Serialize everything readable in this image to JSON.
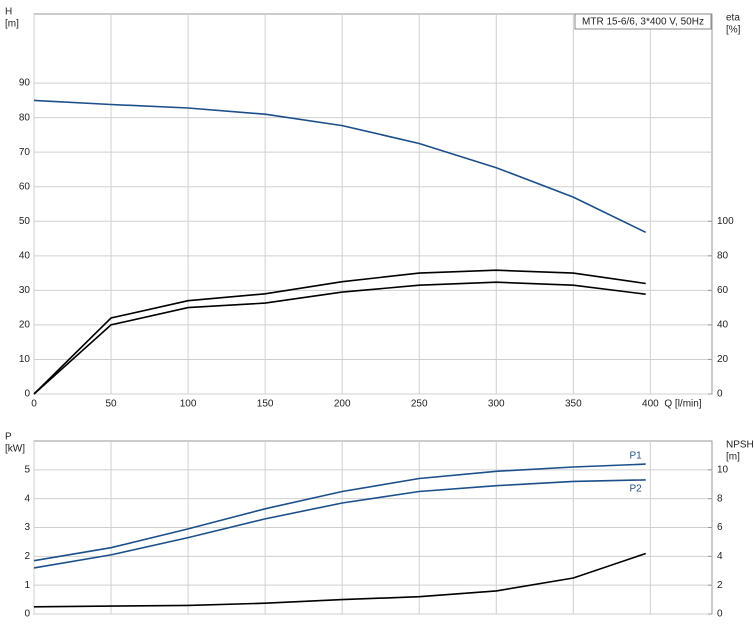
{
  "chart_data": [
    {
      "type": "line",
      "title": "MTR 15-6/6, 3*400 V, 50Hz",
      "ylabel": [
        "H",
        "[m]"
      ],
      "y2label": [
        "eta",
        "[%]"
      ],
      "xlabel": "Q [l/min]",
      "x": [
        0,
        50,
        100,
        150,
        200,
        250,
        300,
        350,
        397
      ],
      "xlim": [
        0,
        440
      ],
      "xticks": [
        0,
        50,
        100,
        150,
        200,
        250,
        300,
        350,
        400
      ],
      "ylim": [
        0,
        110
      ],
      "yticks": [
        0,
        10,
        20,
        30,
        40,
        50,
        60,
        70,
        80,
        90
      ],
      "y2lim": [
        0,
        220
      ],
      "y2ticks": [
        0,
        20,
        40,
        60,
        80,
        100
      ],
      "grid": true,
      "series": [
        {
          "color": "#1b4f8a",
          "values": [
            85,
            83.8,
            82.8,
            81,
            77.7,
            72.5,
            65.5,
            57,
            46.8
          ]
        },
        {
          "color": "#000000",
          "axis": "y2",
          "values": [
            0,
            44,
            54,
            58,
            65,
            70,
            71.7,
            70,
            64
          ]
        },
        {
          "color": "#000000",
          "axis": "y2",
          "values": [
            0,
            40,
            50,
            52.6,
            59,
            63,
            64.7,
            63,
            57.8
          ]
        }
      ]
    },
    {
      "type": "line",
      "ylabel": [
        "P",
        "[kW]"
      ],
      "y2label": [
        "NPSH",
        "[m]"
      ],
      "x": [
        0,
        50,
        100,
        150,
        200,
        250,
        300,
        350,
        397
      ],
      "xlim": [
        0,
        440
      ],
      "xticks": [
        0,
        50,
        100,
        150,
        200,
        250,
        300,
        350,
        400
      ],
      "ylim": [
        0,
        6
      ],
      "yticks": [
        0,
        1,
        2,
        3,
        4,
        5
      ],
      "y2lim": [
        0,
        12
      ],
      "y2ticks": [
        0,
        2,
        4,
        6,
        8,
        10
      ],
      "grid": true,
      "series": [
        {
          "name": "P1",
          "color": "#1b4f8a",
          "values": [
            1.85,
            2.3,
            2.95,
            3.65,
            4.25,
            4.7,
            4.95,
            5.1,
            5.2
          ]
        },
        {
          "name": "P2",
          "color": "#1b4f8a",
          "values": [
            1.6,
            2.05,
            2.65,
            3.3,
            3.85,
            4.25,
            4.45,
            4.6,
            4.65
          ]
        },
        {
          "color": "#000000",
          "axis": "y2",
          "values": [
            0.5,
            0.55,
            0.6,
            0.75,
            1,
            1.2,
            1.6,
            2.5,
            4.2
          ]
        }
      ]
    }
  ]
}
